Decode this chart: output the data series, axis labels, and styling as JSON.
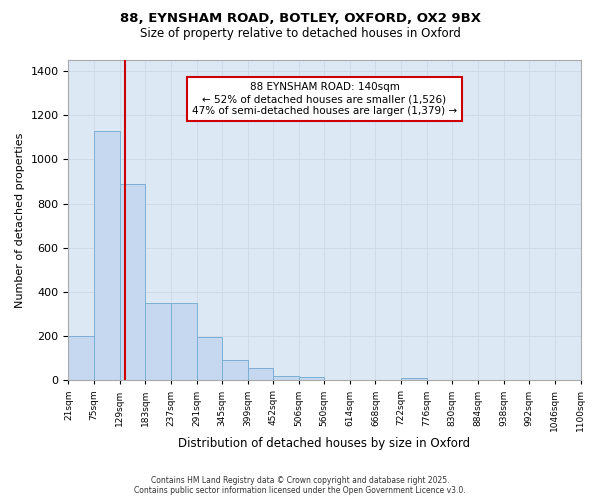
{
  "title1": "88, EYNSHAM ROAD, BOTLEY, OXFORD, OX2 9BX",
  "title2": "Size of property relative to detached houses in Oxford",
  "xlabel": "Distribution of detached houses by size in Oxford",
  "ylabel": "Number of detached properties",
  "bar_values": [
    200,
    1130,
    890,
    350,
    350,
    195,
    90,
    55,
    20,
    15,
    0,
    0,
    0,
    10,
    0,
    0,
    0,
    0,
    0,
    0
  ],
  "bin_edges": [
    21,
    75,
    129,
    183,
    237,
    291,
    345,
    399,
    452,
    506,
    560,
    614,
    668,
    722,
    776,
    830,
    884,
    938,
    992,
    1046,
    1100
  ],
  "tick_labels": [
    "21sqm",
    "75sqm",
    "129sqm",
    "183sqm",
    "237sqm",
    "291sqm",
    "345sqm",
    "399sqm",
    "452sqm",
    "506sqm",
    "560sqm",
    "614sqm",
    "668sqm",
    "722sqm",
    "776sqm",
    "830sqm",
    "884sqm",
    "938sqm",
    "992sqm",
    "1046sqm",
    "1100sqm"
  ],
  "bar_color": "#c5d8f0",
  "bar_edge_color": "#7bafd4",
  "grid_color": "#d0d8e8",
  "plot_bg_color": "#dde8f5",
  "fig_bg_color": "#ffffff",
  "red_line_x": 140,
  "annotation_title": "88 EYNSHAM ROAD: 140sqm",
  "annotation_line2": "← 52% of detached houses are smaller (1,526)",
  "annotation_line3": "47% of semi-detached houses are larger (1,379) →",
  "annotation_box_color": "#cc0000",
  "ylim": [
    0,
    1450
  ],
  "yticks": [
    0,
    200,
    400,
    600,
    800,
    1000,
    1200,
    1400
  ],
  "footer1": "Contains HM Land Registry data © Crown copyright and database right 2025.",
  "footer2": "Contains public sector information licensed under the Open Government Licence v3.0."
}
